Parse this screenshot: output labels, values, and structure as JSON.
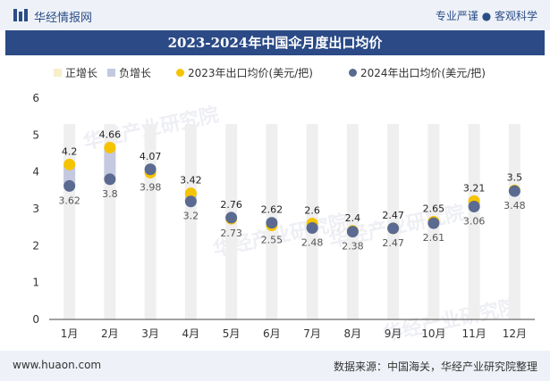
{
  "header": {
    "site_name": "华经情报网",
    "slogan": "专业严谨 ● 客观科学"
  },
  "footer": {
    "url": "www.huaon.com",
    "source": "数据来源：中国海关，华经产业研究院整理"
  },
  "watermark": "华经产业研究院",
  "colors": {
    "positive": "#f6f0c8",
    "negative": "#c4c9e0",
    "s2023": "#f5c400",
    "s2024": "#5b6a90",
    "column": "#efefef"
  },
  "chart_data": {
    "type": "line",
    "title": "2023-2024年中国伞月度出口均价",
    "categories": [
      "1月",
      "2月",
      "3月",
      "4月",
      "5月",
      "6月",
      "7月",
      "8月",
      "9月",
      "10月",
      "11月",
      "12月"
    ],
    "series": [
      {
        "name": "2023年出口均价(美元/把)",
        "values": [
          4.2,
          4.66,
          3.98,
          3.42,
          2.73,
          2.55,
          2.6,
          2.4,
          2.47,
          2.65,
          3.21,
          3.5
        ]
      },
      {
        "name": "2024年出口均价(美元/把)",
        "values": [
          3.62,
          3.8,
          4.07,
          3.2,
          2.76,
          2.62,
          2.48,
          2.38,
          2.47,
          2.61,
          3.06,
          3.48
        ]
      }
    ],
    "legend": [
      {
        "label": "正增长",
        "shape": "square"
      },
      {
        "label": "负增长",
        "shape": "square"
      },
      {
        "label": "2023年出口均价(美元/把)",
        "shape": "circle"
      },
      {
        "label": "2024年出口均价(美元/把)",
        "shape": "circle"
      }
    ],
    "ylim": [
      0,
      6
    ],
    "yticks": [
      0,
      1,
      2,
      3,
      4,
      5,
      6
    ],
    "legend_position": "top-left",
    "grid": false
  }
}
